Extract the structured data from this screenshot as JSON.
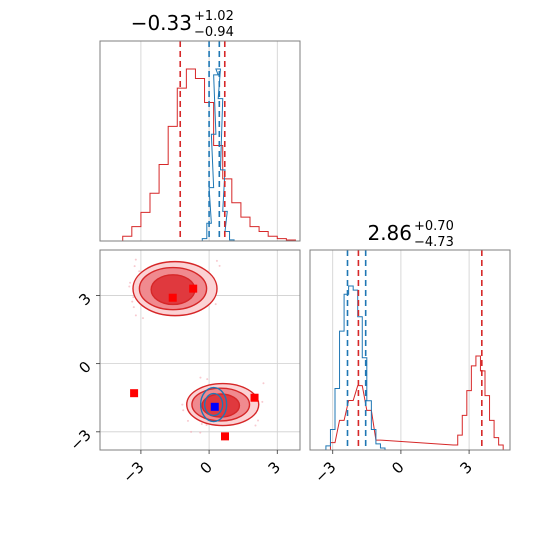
{
  "chart_data": [
    {
      "type": "histogram",
      "panel": "top-left",
      "title": {
        "value": "−0.33",
        "upper": "+1.02",
        "lower": "−0.94"
      },
      "xlim": [
        -4.8,
        4.0
      ],
      "series": [
        {
          "name": "",
          "color": "#d62728",
          "x": [
            -3.6,
            -3.2,
            -2.8,
            -2.4,
            -2.0,
            -1.6,
            -1.2,
            -0.8,
            -0.4,
            0.0,
            0.4,
            0.8,
            1.2,
            1.6,
            2.0,
            2.4,
            2.8,
            3.2,
            3.6
          ],
          "values": [
            0.1,
            0.3,
            0.6,
            1.0,
            1.6,
            2.4,
            3.2,
            3.6,
            3.4,
            2.9,
            2.0,
            1.3,
            0.8,
            0.5,
            0.3,
            0.2,
            0.1,
            0.05,
            0.02
          ]
        },
        {
          "name": "",
          "color": "#1f77b4",
          "x": [
            -0.2,
            0.0,
            0.1,
            0.2,
            0.3,
            0.4,
            0.5,
            0.6,
            0.7,
            0.8,
            1.0
          ],
          "values": [
            0.2,
            1.5,
            4.5,
            9.0,
            14.0,
            14.5,
            12.0,
            6.0,
            2.5,
            0.8,
            0.1
          ]
        }
      ],
      "quantile_lines": [
        {
          "color": "#d62728",
          "x": -1.27
        },
        {
          "color": "#d62728",
          "x": 0.69
        },
        {
          "color": "#1f77b4",
          "x": 0.0
        },
        {
          "color": "#1f77b4",
          "x": 0.45
        }
      ]
    },
    {
      "type": "scatter",
      "panel": "bottom-left",
      "xlim": [
        -4.8,
        4.0
      ],
      "ylim": [
        -3.8,
        5.0
      ],
      "xticks": [
        "−3",
        "0",
        "3"
      ],
      "yticks": [
        "3",
        "0",
        "−3"
      ],
      "grid": true,
      "clusters": [
        {
          "color": "#d62728",
          "center": [
            -1.5,
            3.3
          ]
        },
        {
          "color": "#d62728",
          "center": [
            0.6,
            -1.8
          ]
        },
        {
          "color": "#1f77b4",
          "center": [
            0.2,
            -1.8
          ]
        }
      ],
      "markers": [
        {
          "color": "#ff0000",
          "x": -1.6,
          "y": 2.9
        },
        {
          "color": "#ff0000",
          "x": -0.7,
          "y": 3.3
        },
        {
          "color": "#ff0000",
          "x": -3.3,
          "y": -1.3
        },
        {
          "color": "#ff0000",
          "x": 2.0,
          "y": -1.5
        },
        {
          "color": "#ff0000",
          "x": 0.7,
          "y": -3.2
        },
        {
          "color": "#0000ff",
          "x": 0.25,
          "y": -1.9
        }
      ]
    },
    {
      "type": "histogram",
      "panel": "bottom-right",
      "title": {
        "value": "2.86",
        "upper": "+0.70",
        "lower": "−4.73"
      },
      "xlim": [
        -4.0,
        4.8
      ],
      "xticks": [
        "−3",
        "0",
        "3"
      ],
      "grid": true,
      "series": [
        {
          "name": "",
          "color": "#d62728",
          "x": [
            -3.0,
            -2.6,
            -2.2,
            -1.8,
            -1.4,
            -1.0,
            2.4,
            2.6,
            2.8,
            3.0,
            3.2,
            3.4,
            3.6,
            3.8,
            4.0,
            4.2,
            4.4
          ],
          "values": [
            0.3,
            1.2,
            2.0,
            2.6,
            1.6,
            0.4,
            0.2,
            0.6,
            1.4,
            2.4,
            3.4,
            3.8,
            3.2,
            2.2,
            1.2,
            0.5,
            0.2
          ]
        },
        {
          "name": "",
          "color": "#1f77b4",
          "x": [
            -3.2,
            -3.0,
            -2.8,
            -2.6,
            -2.4,
            -2.2,
            -2.0,
            -1.8,
            -1.6,
            -1.4,
            -1.2,
            -1.0,
            -0.8
          ],
          "values": [
            0.2,
            1.0,
            3.0,
            5.8,
            7.6,
            8.0,
            7.8,
            6.5,
            4.5,
            2.4,
            1.0,
            0.3,
            0.1
          ]
        }
      ],
      "quantile_lines": [
        {
          "color": "#d62728",
          "x": -1.87
        },
        {
          "color": "#d62728",
          "x": 3.56
        },
        {
          "color": "#1f77b4",
          "x": -2.35
        },
        {
          "color": "#1f77b4",
          "x": -1.55
        }
      ]
    }
  ]
}
